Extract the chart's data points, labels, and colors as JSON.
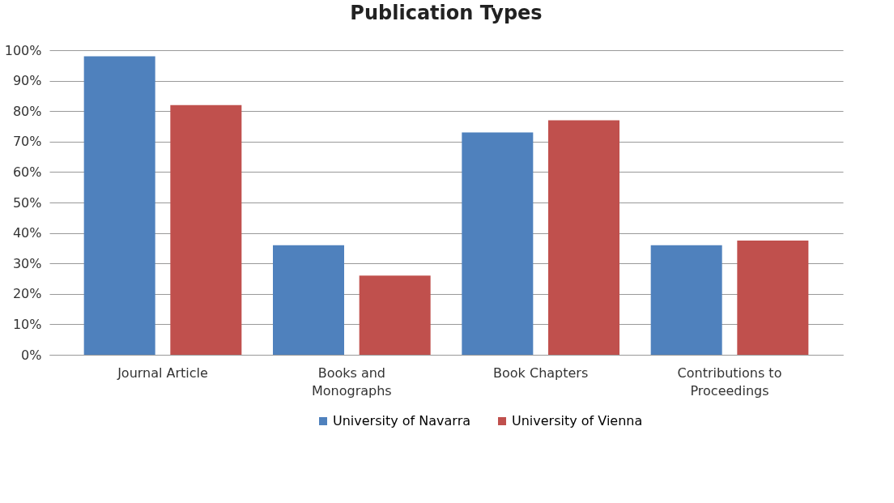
{
  "chart_data": {
    "type": "bar",
    "title": "Publication Types",
    "categories": [
      "Journal Article",
      "Books and Monographs",
      "Book Chapters",
      "Contributions to Proceedings"
    ],
    "series": [
      {
        "name": "University of Navarra",
        "color": "#4f81bd",
        "values": [
          98,
          36,
          73,
          36
        ]
      },
      {
        "name": "University of Vienna",
        "color": "#c0504d",
        "values": [
          82,
          26,
          77,
          37.5
        ]
      }
    ],
    "ylim": [
      0,
      100
    ],
    "yticks": [
      {
        "value": 0,
        "label": "0%"
      },
      {
        "value": 10,
        "label": "10%"
      },
      {
        "value": 20,
        "label": "20%"
      },
      {
        "value": 30,
        "label": "30%"
      },
      {
        "value": 40,
        "label": "40%"
      },
      {
        "value": 50,
        "label": "50%"
      },
      {
        "value": 60,
        "label": "60%"
      },
      {
        "value": 70,
        "label": "70%"
      },
      {
        "value": 80,
        "label": "80%"
      },
      {
        "value": 90,
        "label": "90%"
      },
      {
        "value": 100,
        "label": "100%"
      }
    ],
    "grid": "y",
    "legend": "bottom"
  }
}
